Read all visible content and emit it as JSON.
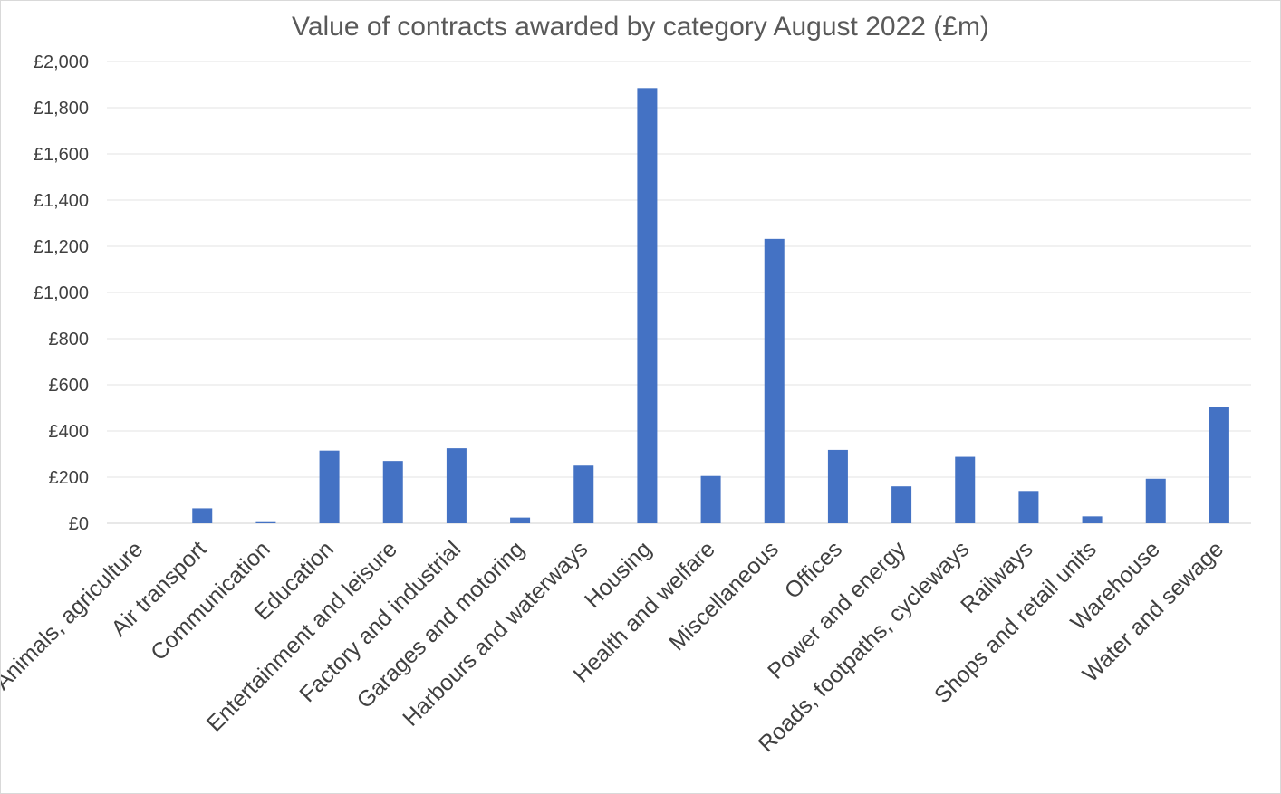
{
  "chart_data": {
    "type": "bar",
    "title": "Value of contracts awarded by category August 2022 (£m)",
    "xlabel": "",
    "ylabel": "",
    "ylim": [
      0,
      2000
    ],
    "yticks": [
      0,
      200,
      400,
      600,
      800,
      1000,
      1200,
      1400,
      1600,
      1800,
      2000
    ],
    "ytick_labels": [
      "£0",
      "£200",
      "£400",
      "£600",
      "£800",
      "£1,000",
      "£1,200",
      "£1,400",
      "£1,600",
      "£1,800",
      "£2,000"
    ],
    "grid": true,
    "bar_color": "#4472C4",
    "categories": [
      "Animals, agriculture",
      "Air transport",
      "Communication",
      "Education",
      "Entertainment and leisure",
      "Factory and industrial",
      "Garages and motoring",
      "Harbours and waterways",
      "Housing",
      "Health and welfare",
      "Miscellaneous",
      "Offices",
      "Power and energy",
      "Roads, footpaths, cycleways",
      "Railways",
      "Shops and retail units",
      "Warehouse",
      "Water and sewage"
    ],
    "values": [
      0,
      65,
      5,
      315,
      270,
      325,
      25,
      250,
      1885,
      205,
      1232,
      318,
      160,
      288,
      140,
      30,
      193,
      505
    ]
  }
}
